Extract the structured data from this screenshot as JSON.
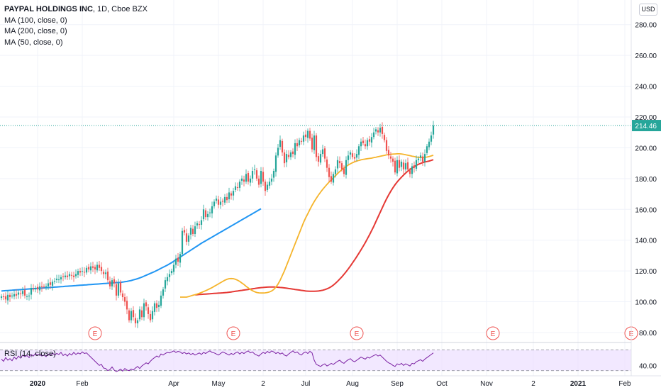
{
  "legend": {
    "symbol": "PAYPAL HOLDINGS INC",
    "meta": ", 1D, Cboe BZX",
    "ma100": "MA (100, close, 0)",
    "ma200": "MA (200, close, 0)",
    "ma50": "MA (50, close, 0)"
  },
  "currency": "USD",
  "rsi_label": "RSI (14, close)",
  "last_price_label": "214.46",
  "earnings_marker": "E",
  "colors": {
    "up": "#26a69a",
    "down": "#ef5350",
    "ma50": "#f5b42b",
    "ma100": "#e53935",
    "ma200": "#2196f3",
    "rsi_line": "#7b1fa2",
    "rsi_band": "#ede0ff",
    "price_label_bg": "#26a69a",
    "earnings": "#ef5350"
  },
  "chart_data": {
    "type": "candlestick",
    "price_axis_ticks": [
      "80.00",
      "100.00",
      "120.00",
      "140.00",
      "160.00",
      "180.00",
      "200.00",
      "220.00",
      "240.00",
      "260.00",
      "280.00"
    ],
    "price_range": [
      74,
      296
    ],
    "time_axis_labels": [
      {
        "label": "2020",
        "i": 17
      },
      {
        "label": "Feb",
        "i": 38
      },
      {
        "label": "Apr",
        "i": 81
      },
      {
        "label": "May",
        "i": 102
      },
      {
        "label": "2",
        "i": 123
      },
      {
        "label": "Jul",
        "i": 143
      },
      {
        "label": "Aug",
        "i": 165
      },
      {
        "label": "Sep",
        "i": 186
      },
      {
        "label": "Oct",
        "i": 207
      },
      {
        "label": "Nov",
        "i": 228
      },
      {
        "label": "2",
        "i": 250
      },
      {
        "label": "2021",
        "i": 271
      },
      {
        "label": "Feb",
        "i": 293
      }
    ],
    "earnings_bars": [
      44,
      109,
      167,
      231,
      296
    ],
    "last_price": 214.46,
    "rsi_ticks": [
      "40.00"
    ],
    "rsi_range": [
      20,
      80
    ],
    "rsi_levels": [
      70,
      30
    ],
    "close": [
      103.5,
      103,
      101.5,
      104.5,
      103,
      104,
      105,
      104,
      106,
      105,
      107,
      104,
      103.5,
      104,
      109,
      108,
      109,
      108,
      110,
      109.5,
      110,
      110,
      112,
      111,
      113,
      113.5,
      115,
      114.5,
      116,
      116.5,
      117,
      116,
      118,
      117,
      116,
      118,
      120,
      119,
      120,
      119,
      122,
      121,
      123,
      122,
      121,
      124,
      122,
      120,
      118,
      119,
      114,
      110,
      114,
      112,
      104,
      112,
      106,
      103,
      100,
      95,
      88,
      94,
      90,
      86,
      88,
      95,
      90,
      99,
      97,
      92,
      88,
      94,
      99,
      96,
      98,
      104,
      108,
      114,
      116,
      118,
      120,
      124,
      128,
      126,
      131,
      146,
      145,
      139,
      143,
      148,
      144,
      149,
      151,
      150,
      153,
      160,
      155,
      157,
      158,
      162,
      165,
      167,
      163,
      165,
      165,
      168,
      166,
      171,
      169,
      172,
      175,
      174,
      178,
      180,
      178,
      183,
      178,
      180,
      185,
      186,
      180,
      176,
      185,
      178,
      172,
      176,
      178,
      180,
      185,
      195,
      200,
      205,
      197,
      190,
      196,
      194,
      197,
      196,
      203,
      201,
      205,
      204,
      208,
      207,
      211,
      206,
      199,
      208,
      194,
      191,
      196,
      199,
      193,
      187,
      181,
      178,
      183,
      186,
      192,
      190,
      186,
      183,
      192,
      195,
      197,
      194,
      193,
      196,
      201,
      204,
      203,
      201,
      205,
      204,
      207,
      210,
      212,
      210,
      213,
      209,
      205,
      198,
      195,
      193,
      191,
      184,
      192,
      187,
      191,
      186,
      190,
      186,
      183,
      188,
      187,
      192,
      193,
      195,
      191,
      196,
      201,
      204,
      208,
      214.46
    ],
    "ma50": [
      103,
      103,
      103,
      103,
      103.4,
      103.8,
      104.2,
      104.6,
      105,
      105.5,
      106,
      106.6,
      107.2,
      107.8,
      108.5,
      109.2,
      110,
      110.8,
      111.6,
      112.4,
      113.2,
      114,
      114.6,
      115,
      115.1,
      115,
      114.6,
      114,
      113.2,
      112.2,
      111.2,
      110,
      109,
      108,
      107.2,
      106.5,
      106,
      105.8,
      105.7,
      105.7,
      105.8,
      106,
      106.4,
      107,
      108,
      109.5,
      111.5,
      114,
      117,
      120,
      123.5,
      127,
      130.5,
      134,
      137.5,
      141,
      144.5,
      148,
      151.5,
      154.5,
      157.2,
      160,
      162.6,
      165,
      167.2,
      169.3,
      171.2,
      173,
      174.6,
      176.2,
      177.7,
      179.1,
      180.5,
      181.9,
      183.3,
      184.6,
      185.8,
      186.9,
      187.9,
      188.8,
      189.6,
      190.3,
      190.9,
      191.4,
      191.8,
      192.2,
      192.5,
      192.7,
      192.9,
      193.1,
      193.3,
      193.6,
      193.9,
      194.2,
      194.5,
      194.8,
      195.1,
      195.4,
      195.6,
      195.8,
      195.9,
      196,
      196.1,
      196.1,
      196,
      195.8,
      195.5,
      195.2,
      194.9,
      194.6,
      194.3,
      194,
      193.8,
      193.7,
      193.7,
      193.8,
      194,
      194.3,
      194.7,
      195.2
    ],
    "ma100": [
      104.5,
      104.6,
      104.7,
      104.8,
      104.9,
      105,
      105.1,
      105.2,
      105.3,
      105.4,
      105.5,
      105.6,
      105.7,
      105.8,
      105.9,
      106,
      106.2,
      106.4,
      106.6,
      106.8,
      107,
      107.2,
      107.4,
      107.6,
      107.8,
      108,
      108.2,
      108.4,
      108.6,
      108.8,
      109,
      109.2,
      109.3,
      109.4,
      109.5,
      109.6,
      109.6,
      109.6,
      109.5,
      109.4,
      109.3,
      109.2,
      109,
      108.8,
      108.6,
      108.4,
      108.2,
      108,
      107.8,
      107.6,
      107.4,
      107.2,
      107,
      106.9,
      106.8,
      106.8,
      106.8,
      106.9,
      107,
      107.2,
      107.5,
      107.9,
      108.4,
      109,
      109.8,
      110.8,
      112,
      113.3,
      114.7,
      116.2,
      117.8,
      119.5,
      121.3,
      123.2,
      125.2,
      127.2,
      129.3,
      131.5,
      133.7,
      136,
      138.4,
      140.9,
      143.5,
      146.2,
      149,
      152,
      155,
      158,
      161,
      164,
      166.8,
      169.4,
      171.8,
      174,
      176,
      177.8,
      179.4,
      180.9,
      182.3,
      183.6,
      184.8,
      185.9,
      186.9,
      187.8,
      188.6,
      189.3,
      189.9,
      190.4,
      190.8,
      191.1,
      191.4,
      191.8,
      192.3
    ],
    "ma200": [
      107,
      107.1,
      107.2,
      107.3,
      107.4,
      107.5,
      107.6,
      107.7,
      107.8,
      107.9,
      108,
      108.1,
      108.2,
      108.3,
      108.4,
      108.5,
      108.6,
      108.7,
      108.8,
      108.9,
      109,
      109.1,
      109.2,
      109.3,
      109.4,
      109.5,
      109.6,
      109.7,
      109.8,
      109.9,
      110,
      110.1,
      110.2,
      110.3,
      110.4,
      110.5,
      110.6,
      110.7,
      110.8,
      110.9,
      111,
      111.1,
      111.2,
      111.3,
      111.4,
      111.5,
      111.6,
      111.7,
      111.8,
      111.9,
      112,
      112.1,
      112.2,
      112.3,
      112.4,
      112.5,
      112.6,
      112.8,
      113,
      113.2,
      113.5,
      113.8,
      114.2,
      114.6,
      115,
      115.5,
      116,
      116.6,
      117.2,
      117.8,
      118.4,
      119,
      119.6,
      120.3,
      121,
      121.7,
      122.4,
      123.1,
      123.8,
      124.6,
      125.4,
      126.3,
      127.2,
      128.1,
      129,
      129.9,
      130.8,
      131.7,
      132.6,
      133.5,
      134.4,
      135.3,
      136.2,
      137.1,
      138,
      138.8,
      139.6,
      140.4,
      141.2,
      142,
      142.8,
      143.6,
      144.4,
      145.2,
      146,
      146.8,
      147.6,
      148.4,
      149.2,
      150,
      150.8,
      151.6,
      152.4,
      153.2,
      154,
      154.8,
      155.6,
      156.4,
      157.2,
      158,
      158.8,
      159.6,
      160.4
    ],
    "rsi": [
      52,
      48,
      55,
      50,
      53,
      49,
      56,
      52,
      58,
      54,
      60,
      57,
      59,
      55,
      61,
      58,
      63,
      60,
      62,
      58,
      60,
      57,
      62,
      59,
      64,
      60,
      63,
      61,
      65,
      59,
      62,
      58,
      63,
      60,
      65,
      61,
      64,
      62,
      66,
      63,
      64,
      60,
      56,
      52,
      48,
      44,
      40,
      42,
      35,
      34,
      30,
      32,
      37,
      31,
      28,
      30,
      33,
      29,
      34,
      31,
      30,
      33,
      31,
      35,
      38,
      34,
      39,
      42,
      45,
      43,
      48,
      52,
      55,
      58,
      56,
      62,
      60,
      63,
      65,
      64,
      66,
      68,
      65,
      67,
      66,
      63,
      65,
      62,
      64,
      61,
      63,
      60,
      62,
      64,
      61,
      65,
      63,
      66,
      68,
      65,
      64,
      62,
      60,
      63,
      66,
      64,
      62,
      60,
      63,
      61,
      64,
      66,
      62,
      65,
      63,
      66,
      68,
      64,
      66,
      62,
      60,
      58,
      62,
      65,
      63,
      67,
      64,
      68,
      66,
      63,
      65,
      62,
      64,
      60,
      58,
      62,
      65,
      68,
      64,
      66,
      62,
      60,
      64,
      66,
      63,
      67,
      64,
      50,
      42,
      40,
      38,
      41,
      43,
      39,
      41,
      44,
      42,
      45,
      48,
      50,
      46,
      44,
      48,
      51,
      53,
      49,
      47,
      50,
      53,
      56,
      54,
      52,
      56,
      54,
      57,
      59,
      61,
      58,
      60,
      56,
      52,
      48,
      45,
      43,
      40,
      38,
      43,
      41,
      44,
      40,
      43,
      41,
      39,
      44,
      43,
      47,
      49,
      51,
      48,
      52,
      55,
      58,
      61,
      64
    ]
  }
}
